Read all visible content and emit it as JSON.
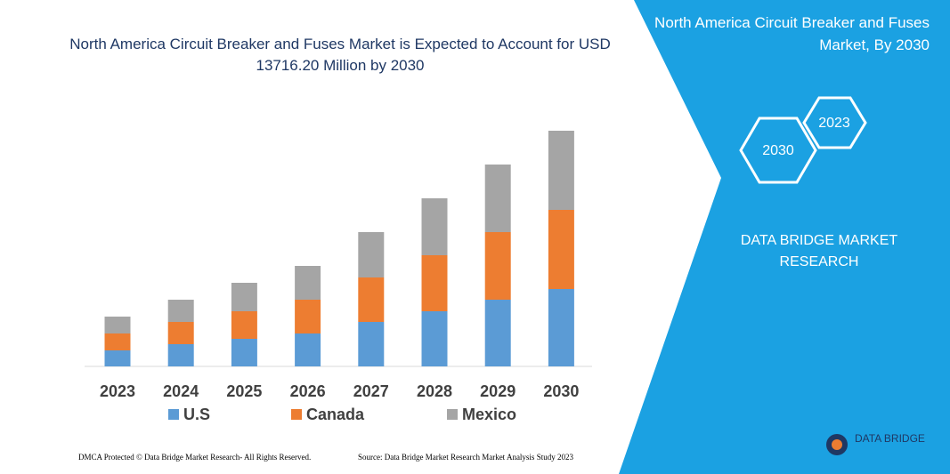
{
  "chart_data": {
    "type": "bar",
    "stacked": true,
    "title": "North America Circuit Breaker and Fuses Market is Expected to Account for USD 13716.20 Million by 2030",
    "categories": [
      "2023",
      "2024",
      "2025",
      "2026",
      "2027",
      "2028",
      "2029",
      "2030"
    ],
    "series": [
      {
        "name": "U.S",
        "color": "#5b9bd5",
        "values": [
          18,
          25,
          31,
          37,
          50,
          62,
          75,
          87
        ]
      },
      {
        "name": "Canada",
        "color": "#ed7d31",
        "values": [
          19,
          25,
          31,
          38,
          50,
          63,
          76,
          89
        ]
      },
      {
        "name": "Mexico",
        "color": "#a5a5a5",
        "values": [
          19,
          25,
          32,
          38,
          51,
          64,
          76,
          89
        ]
      }
    ]
  },
  "panel": {
    "title": "North America Circuit Breaker and Fuses Market, By 2030",
    "hexagons": [
      "2023",
      "2030"
    ],
    "brand": "DATA BRIDGE MARKET RESEARCH"
  },
  "footer": {
    "copyright": "DMCA Protected © Data Bridge Market Research- All Rights Reserved.",
    "source": "Source: Data Bridge Market Research  Market Analysis Study 2023"
  },
  "logo": "DATA BRIDGE"
}
